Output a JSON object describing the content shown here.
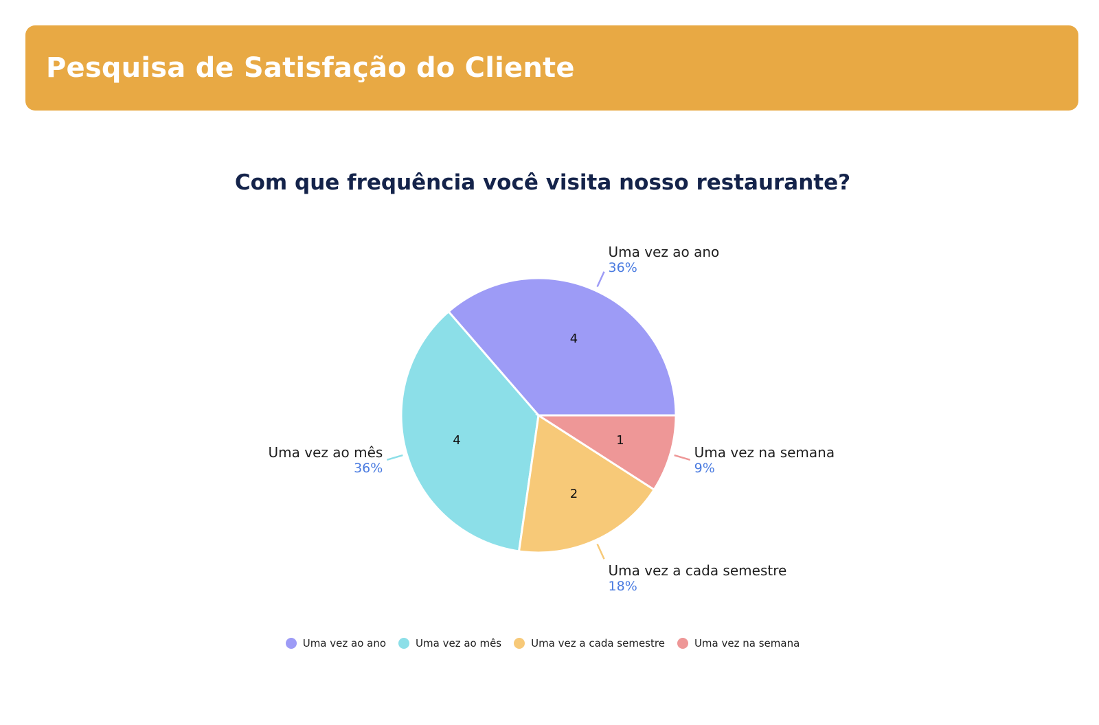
{
  "header": {
    "title": "Pesquisa de Satisfação do Cliente",
    "background": "#E8A944"
  },
  "chart_data": {
    "type": "pie",
    "title": "Com que frequência você visita nosso restaurante?",
    "slices": [
      {
        "label": "Uma vez ao ano",
        "value": 4,
        "percent": "36%",
        "color": "#9D9BF6"
      },
      {
        "label": "Uma vez ao mês",
        "value": 4,
        "percent": "36%",
        "color": "#8CDFE8"
      },
      {
        "label": "Uma vez a cada semestre",
        "value": 2,
        "percent": "18%",
        "color": "#F7C978"
      },
      {
        "label": "Uma vez na semana",
        "value": 1,
        "percent": "9%",
        "color": "#EE9797"
      }
    ],
    "legend": {
      "position": "bottom",
      "entries": [
        "Uma vez ao ano",
        "Uma vez ao mês",
        "Uma vez a cada semestre",
        "Uma vez na semana"
      ]
    }
  }
}
